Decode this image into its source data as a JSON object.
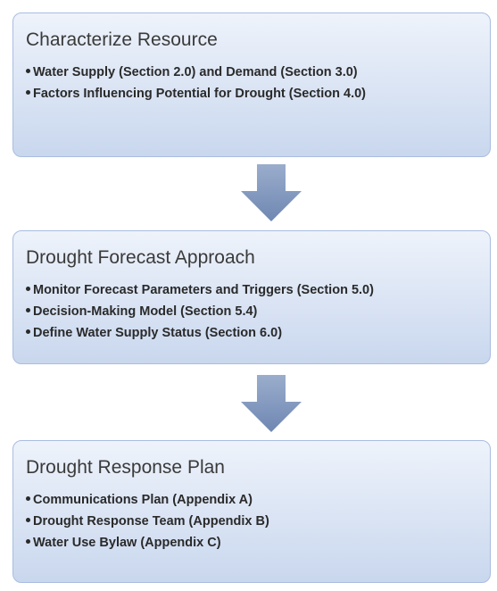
{
  "nodes": [
    {
      "title": "Characterize Resource",
      "bullets": [
        "Water Supply (Section 2.0) and Demand (Section 3.0)",
        "Factors Influencing Potential for Drought (Section 4.0)"
      ]
    },
    {
      "title": "Drought Forecast Approach",
      "bullets": [
        "Monitor Forecast Parameters and Triggers (Section 5.0)",
        "Decision-Making Model (Section 5.4)",
        "Define Water Supply Status (Section 6.0)"
      ]
    },
    {
      "title": "Drought Response Plan",
      "bullets": [
        "Communications Plan (Appendix A)",
        "Drought Response Team (Appendix B)",
        "Water Use Bylaw (Appendix C)"
      ]
    }
  ]
}
